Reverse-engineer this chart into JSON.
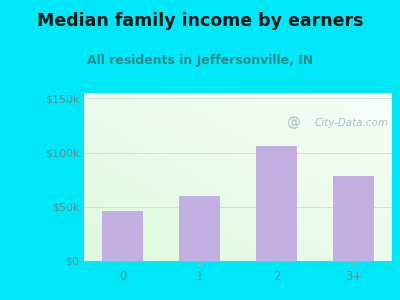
{
  "title": "Median family income by earners",
  "subtitle": "All residents in Jeffersonville, IN",
  "categories": [
    "0",
    "1",
    "2",
    "3+"
  ],
  "values": [
    46000,
    60000,
    106000,
    78000
  ],
  "bar_color": "#c4b0e0",
  "background_outer": "#00e8f8",
  "title_color": "#1a1a1a",
  "subtitle_color": "#2e8b8b",
  "tick_label_color": "#5a9090",
  "ytick_labels": [
    "$0",
    "$50k",
    "$100k",
    "$150k"
  ],
  "ytick_values": [
    0,
    50000,
    100000,
    150000
  ],
  "ylim": [
    0,
    155000
  ],
  "watermark": "City-Data.com",
  "title_fontsize": 12.5,
  "subtitle_fontsize": 9.0,
  "watermark_color": "#9ab8c8",
  "grid_color": "#d0ddd0"
}
